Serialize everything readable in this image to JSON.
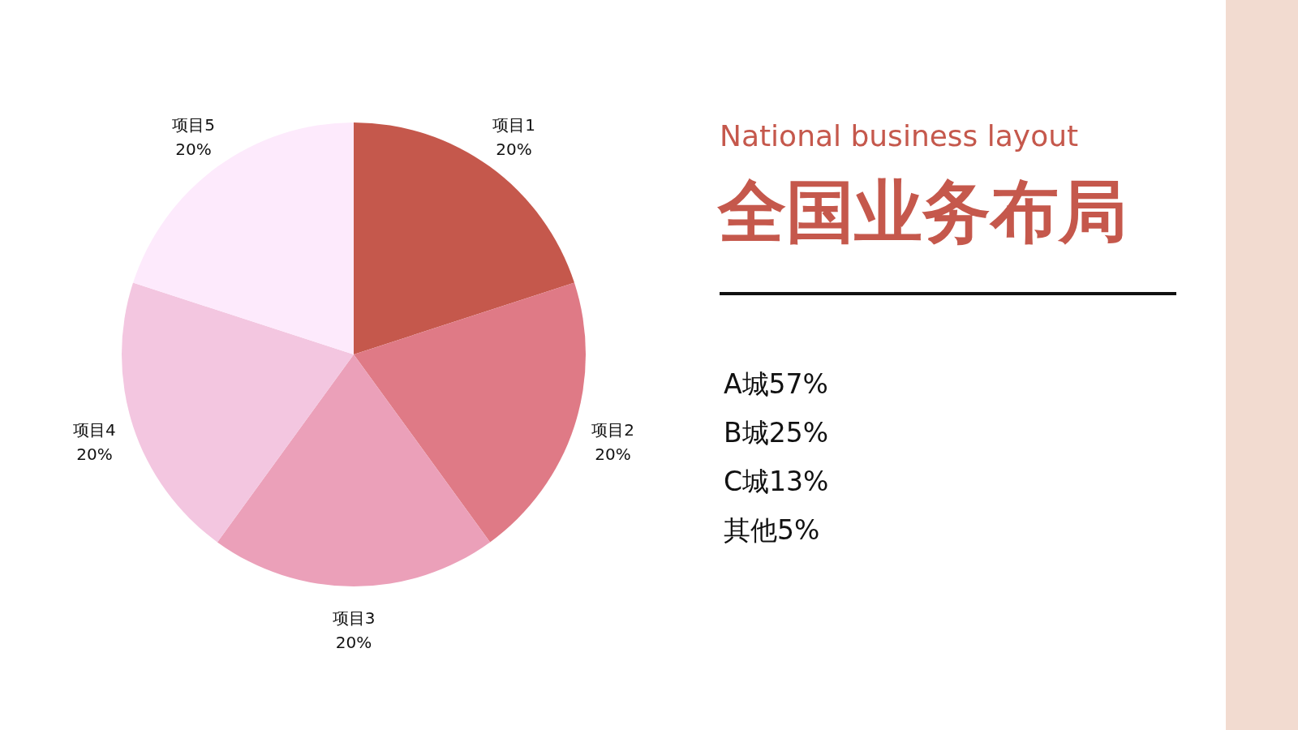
{
  "chart_data": {
    "type": "pie",
    "title": "全国业务布局",
    "subtitle": "National business layout",
    "categories": [
      "项目1",
      "项目2",
      "项目3",
      "项目4",
      "项目5"
    ],
    "values": [
      20,
      20,
      20,
      20,
      20
    ],
    "value_labels": [
      "20%",
      "20%",
      "20%",
      "20%",
      "20%"
    ],
    "colors": [
      "#c5584c",
      "#df7a86",
      "#eba0b9",
      "#f3c6e0",
      "#fdeafc"
    ],
    "annotations": [
      "A城57%",
      "B城25%",
      "C城13%",
      "其他5%"
    ]
  }
}
